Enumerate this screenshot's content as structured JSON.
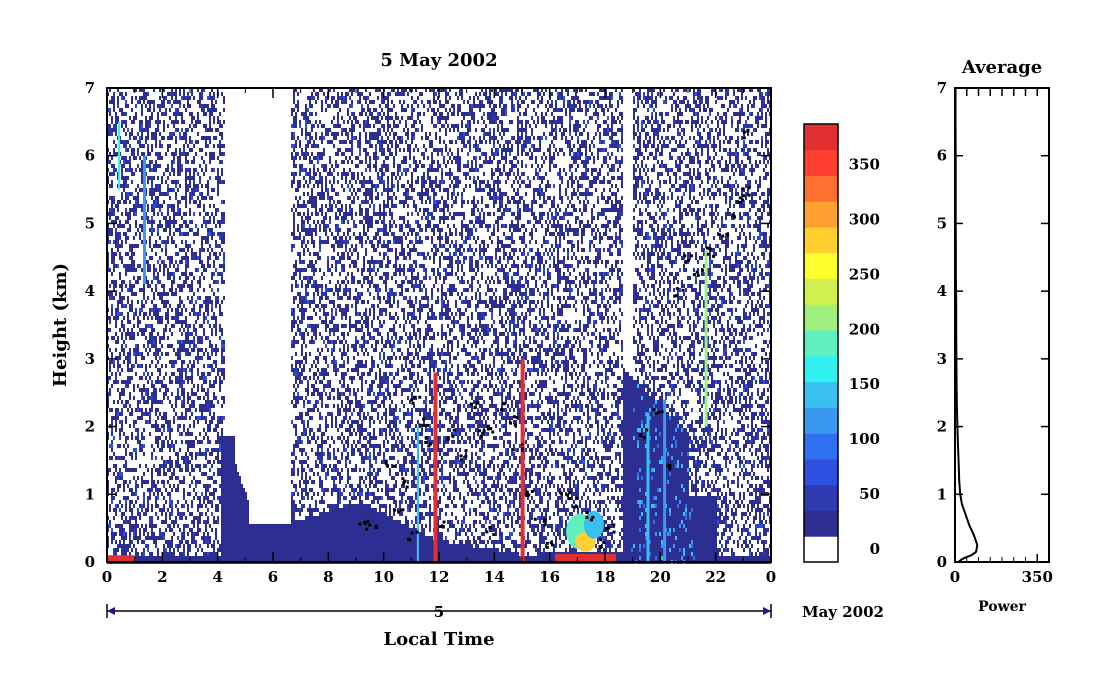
{
  "chart_data": [
    {
      "type": "heatmap",
      "title": "5 May 2002",
      "xlabel": "Local Time",
      "ylabel": "Height (km)",
      "xlim": [
        0,
        24
      ],
      "ylim": [
        0,
        7
      ],
      "x_ticks": [
        "0",
        "2",
        "4",
        "6",
        "8",
        "10",
        "12",
        "14",
        "16",
        "18",
        "20",
        "22",
        "0"
      ],
      "y_ticks": [
        "0",
        "1",
        "2",
        "3",
        "4",
        "5",
        "6",
        "7"
      ],
      "date_axis": {
        "day_label": "5",
        "month_label": "May 2002"
      },
      "colorbar": {
        "ticks": [
          "0",
          "50",
          "100",
          "150",
          "200",
          "250",
          "300",
          "350"
        ],
        "range": [
          0,
          375
        ],
        "colors": [
          "#ffffff",
          "#2c2f91",
          "#2f3bb0",
          "#2f4fe0",
          "#3070f0",
          "#3a98f0",
          "#38c0f0",
          "#30f0f0",
          "#60f0c0",
          "#a0f080",
          "#d0f050",
          "#ffff30",
          "#ffd030",
          "#ffa030",
          "#ff7030",
          "#ff4030",
          "#e03030"
        ]
      },
      "grid": false,
      "legend": "none"
    },
    {
      "type": "line",
      "title": "Average",
      "xlabel": "Power",
      "ylabel": "",
      "xlim": [
        0,
        400
      ],
      "ylim": [
        0,
        7
      ],
      "x_ticks": [
        "0",
        "350"
      ],
      "y_ticks": [
        "0",
        "1",
        "2",
        "3",
        "4",
        "5",
        "6",
        "7"
      ],
      "series": [
        {
          "x": [
            15,
            25,
            40,
            70,
            90,
            95,
            80,
            60,
            45,
            30,
            22,
            18,
            16,
            14,
            12,
            10,
            8,
            7,
            6,
            5,
            5,
            4,
            4,
            3,
            3,
            3,
            2,
            2
          ],
          "y": [
            0.0,
            0.03,
            0.06,
            0.1,
            0.15,
            0.25,
            0.4,
            0.55,
            0.7,
            0.85,
            1.0,
            1.2,
            1.4,
            1.6,
            1.8,
            2.0,
            2.3,
            2.6,
            3.0,
            3.4,
            3.8,
            4.2,
            4.6,
            5.0,
            5.5,
            6.0,
            6.5,
            7.0
          ]
        }
      ]
    }
  ]
}
